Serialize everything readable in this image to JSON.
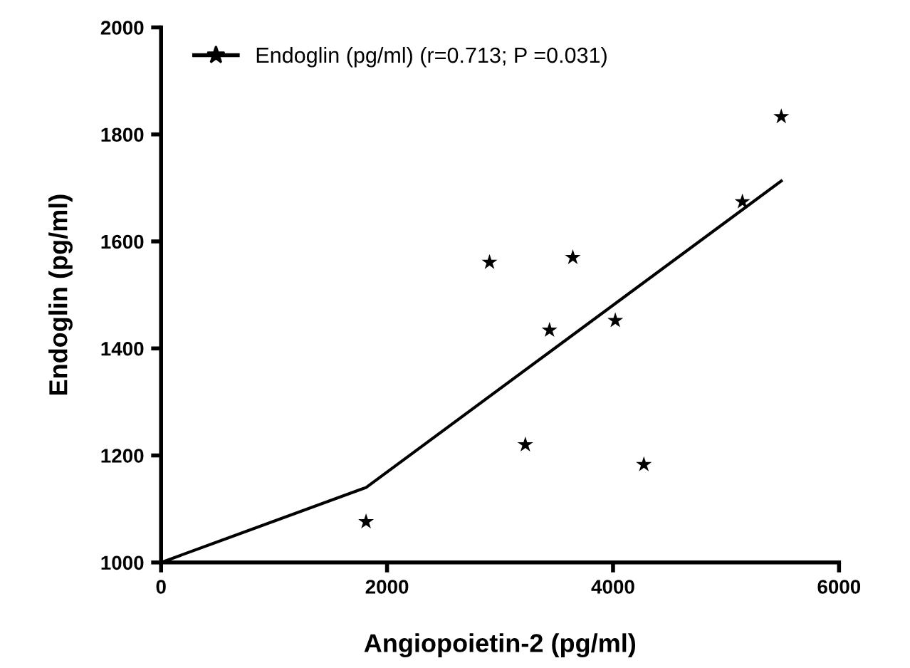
{
  "chart_data": {
    "type": "scatter",
    "xlabel": "Angiopoietin-2 (pg/ml)",
    "ylabel": "Endoglin (pg/ml)",
    "xlim": [
      0,
      6000
    ],
    "xticks": [
      0,
      2000,
      4000,
      6000
    ],
    "ylim": [
      1000,
      2000
    ],
    "yticks": [
      1000,
      1200,
      1400,
      1600,
      1800,
      2000
    ],
    "grid": false,
    "legend": "top left",
    "series": [
      {
        "name": "Endoglin (pg/ml) (r=0.713; P =0.031)",
        "color": "#000000",
        "marker": "star",
        "x": [
          1814,
          2907,
          3224,
          3438,
          3644,
          4020,
          4273,
          5145,
          5489
        ],
        "values": [
          1076,
          1561,
          1220,
          1434,
          1570,
          1452,
          1183,
          1674,
          1833
        ]
      },
      {
        "type": "line",
        "color": "#000000",
        "marker": "none",
        "x": [
          0,
          1814,
          5489
        ],
        "values": [
          1000,
          1140,
          1713
        ]
      }
    ]
  }
}
